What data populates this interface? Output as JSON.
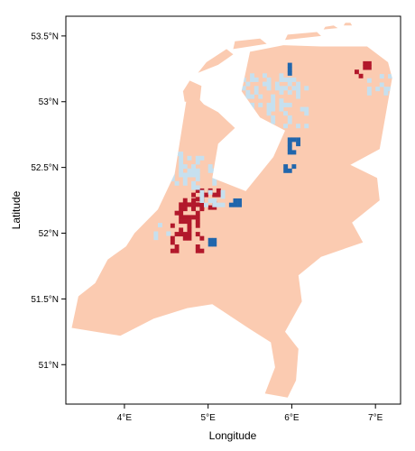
{
  "chart_data": {
    "type": "heatmap",
    "title": "",
    "xlabel": "Longitude",
    "ylabel": "Latitude",
    "xlim": [
      3.3,
      7.3
    ],
    "ylim": [
      50.7,
      53.65
    ],
    "x_ticks": [
      {
        "value": 4,
        "label": "4°E"
      },
      {
        "value": 5,
        "label": "5°E"
      },
      {
        "value": 6,
        "label": "6°E"
      },
      {
        "value": 7,
        "label": "7°E"
      }
    ],
    "y_ticks": [
      {
        "value": 51.0,
        "label": "51°N"
      },
      {
        "value": 51.5,
        "label": "51.5°N"
      },
      {
        "value": 52.0,
        "label": "52°N"
      },
      {
        "value": 52.5,
        "label": "52.5°N"
      },
      {
        "value": 53.0,
        "label": "53°N"
      },
      {
        "value": 53.5,
        "label": "53.5°N"
      }
    ],
    "grid": false,
    "legend": "none",
    "classes": [
      {
        "value": -2,
        "color": "#2166ac"
      },
      {
        "value": -1,
        "color": "#c6e0ef"
      },
      {
        "value": 0,
        "color": "#fbcbb1"
      },
      {
        "value": 2,
        "color": "#b2182b"
      }
    ],
    "land_outline": [
      [
        3.37,
        51.28
      ],
      [
        3.95,
        51.22
      ],
      [
        4.35,
        51.35
      ],
      [
        4.75,
        51.43
      ],
      [
        5.05,
        51.46
      ],
      [
        5.5,
        51.27
      ],
      [
        5.75,
        51.17
      ],
      [
        5.8,
        50.98
      ],
      [
        5.68,
        50.78
      ],
      [
        5.95,
        50.75
      ],
      [
        6.05,
        50.88
      ],
      [
        6.08,
        51.12
      ],
      [
        5.92,
        51.25
      ],
      [
        6.12,
        51.48
      ],
      [
        6.08,
        51.68
      ],
      [
        6.35,
        51.82
      ],
      [
        6.85,
        51.93
      ],
      [
        6.72,
        52.08
      ],
      [
        7.05,
        52.25
      ],
      [
        7.02,
        52.42
      ],
      [
        6.7,
        52.52
      ],
      [
        7.05,
        52.64
      ],
      [
        7.2,
        53.18
      ],
      [
        7.15,
        53.3
      ],
      [
        6.9,
        53.42
      ],
      [
        6.35,
        53.42
      ],
      [
        5.9,
        53.43
      ],
      [
        5.5,
        53.38
      ],
      [
        5.4,
        53.08
      ],
      [
        5.62,
        52.88
      ],
      [
        5.92,
        52.78
      ],
      [
        5.78,
        52.58
      ],
      [
        5.45,
        52.32
      ],
      [
        5.05,
        52.42
      ],
      [
        5.12,
        52.68
      ],
      [
        5.32,
        52.8
      ],
      [
        5.12,
        52.92
      ],
      [
        4.95,
        52.98
      ],
      [
        4.85,
        53.05
      ],
      [
        4.75,
        53.05
      ],
      [
        4.7,
        52.85
      ],
      [
        4.6,
        52.45
      ],
      [
        4.4,
        52.18
      ],
      [
        4.12,
        52.0
      ],
      [
        4.02,
        51.9
      ],
      [
        3.8,
        51.8
      ],
      [
        3.65,
        51.62
      ],
      [
        3.45,
        51.52
      ]
    ],
    "islands": [
      [
        [
          4.72,
          53.0
        ],
        [
          4.9,
          53.0
        ],
        [
          4.92,
          53.12
        ],
        [
          4.78,
          53.16
        ],
        [
          4.7,
          53.08
        ]
      ],
      [
        [
          4.88,
          53.22
        ],
        [
          5.12,
          53.28
        ],
        [
          5.3,
          53.36
        ],
        [
          5.22,
          53.4
        ],
        [
          4.98,
          53.3
        ]
      ],
      [
        [
          5.3,
          53.4
        ],
        [
          5.7,
          53.44
        ],
        [
          5.62,
          53.48
        ],
        [
          5.32,
          53.46
        ]
      ],
      [
        [
          5.92,
          53.47
        ],
        [
          6.35,
          53.5
        ],
        [
          6.3,
          53.53
        ],
        [
          5.95,
          53.51
        ]
      ],
      [
        [
          6.38,
          53.55
        ],
        [
          6.55,
          53.56
        ],
        [
          6.5,
          53.58
        ],
        [
          6.4,
          53.57
        ]
      ],
      [
        [
          6.62,
          53.58
        ],
        [
          6.72,
          53.58
        ],
        [
          6.7,
          53.6
        ],
        [
          6.64,
          53.6
        ]
      ]
    ],
    "patches": [
      {
        "value": 2,
        "x": [
          4.55,
          4.95
        ],
        "y": [
          51.85,
          52.25
        ]
      },
      {
        "value": 2,
        "x": [
          4.8,
          5.15
        ],
        "y": [
          52.18,
          52.32
        ]
      },
      {
        "value": 2,
        "x": [
          6.75,
          6.95
        ],
        "y": [
          53.18,
          53.28
        ]
      },
      {
        "value": -2,
        "x": [
          5.25,
          5.4
        ],
        "y": [
          52.2,
          52.26
        ]
      },
      {
        "value": -2,
        "x": [
          5.95,
          6.1
        ],
        "y": [
          52.6,
          52.7
        ]
      },
      {
        "value": -2,
        "x": [
          5.9,
          6.05
        ],
        "y": [
          52.46,
          52.5
        ]
      },
      {
        "value": -2,
        "x": [
          5.95,
          6.0
        ],
        "y": [
          53.2,
          53.28
        ]
      },
      {
        "value": -2,
        "x": [
          5.0,
          5.1
        ],
        "y": [
          51.9,
          51.95
        ]
      },
      {
        "value": -1,
        "x": [
          4.55,
          5.1
        ],
        "y": [
          52.3,
          52.6
        ]
      },
      {
        "value": -1,
        "x": [
          5.4,
          6.2
        ],
        "y": [
          52.8,
          53.2
        ]
      },
      {
        "value": -1,
        "x": [
          4.9,
          5.2
        ],
        "y": [
          52.2,
          52.3
        ]
      },
      {
        "value": -1,
        "x": [
          6.9,
          7.2
        ],
        "y": [
          53.05,
          53.2
        ]
      },
      {
        "value": -1,
        "x": [
          4.3,
          4.55
        ],
        "y": [
          51.95,
          52.05
        ]
      }
    ]
  }
}
